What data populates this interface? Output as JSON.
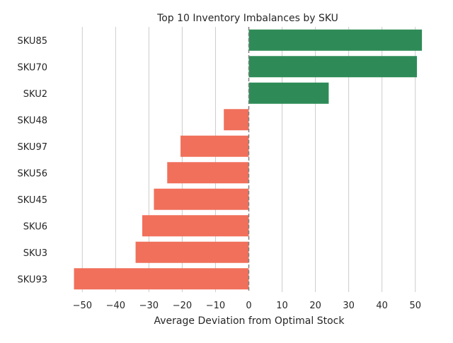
{
  "chart_data": {
    "type": "bar",
    "orientation": "horizontal",
    "title": "Top 10 Inventory Imbalances by SKU",
    "xlabel": "Average Deviation from Optimal Stock",
    "ylabel": "",
    "categories": [
      "SKU85",
      "SKU70",
      "SKU2",
      "SKU48",
      "SKU97",
      "SKU56",
      "SKU45",
      "SKU6",
      "SKU3",
      "SKU93"
    ],
    "values": [
      52,
      50.5,
      24,
      -7.5,
      -20.5,
      -24.5,
      -28.5,
      -32,
      -34,
      -52.5
    ],
    "xlim": [
      -57.5,
      57.5
    ],
    "xticks": [
      -50,
      -40,
      -30,
      -20,
      -10,
      0,
      10,
      20,
      30,
      40,
      50
    ],
    "grid": "vertical",
    "zero_line": "dashed",
    "colors": {
      "positive": "#2e8b57",
      "negative": "#f0705b",
      "grid": "#cccccc",
      "zero_line": "#808080",
      "text": "#262626"
    }
  }
}
